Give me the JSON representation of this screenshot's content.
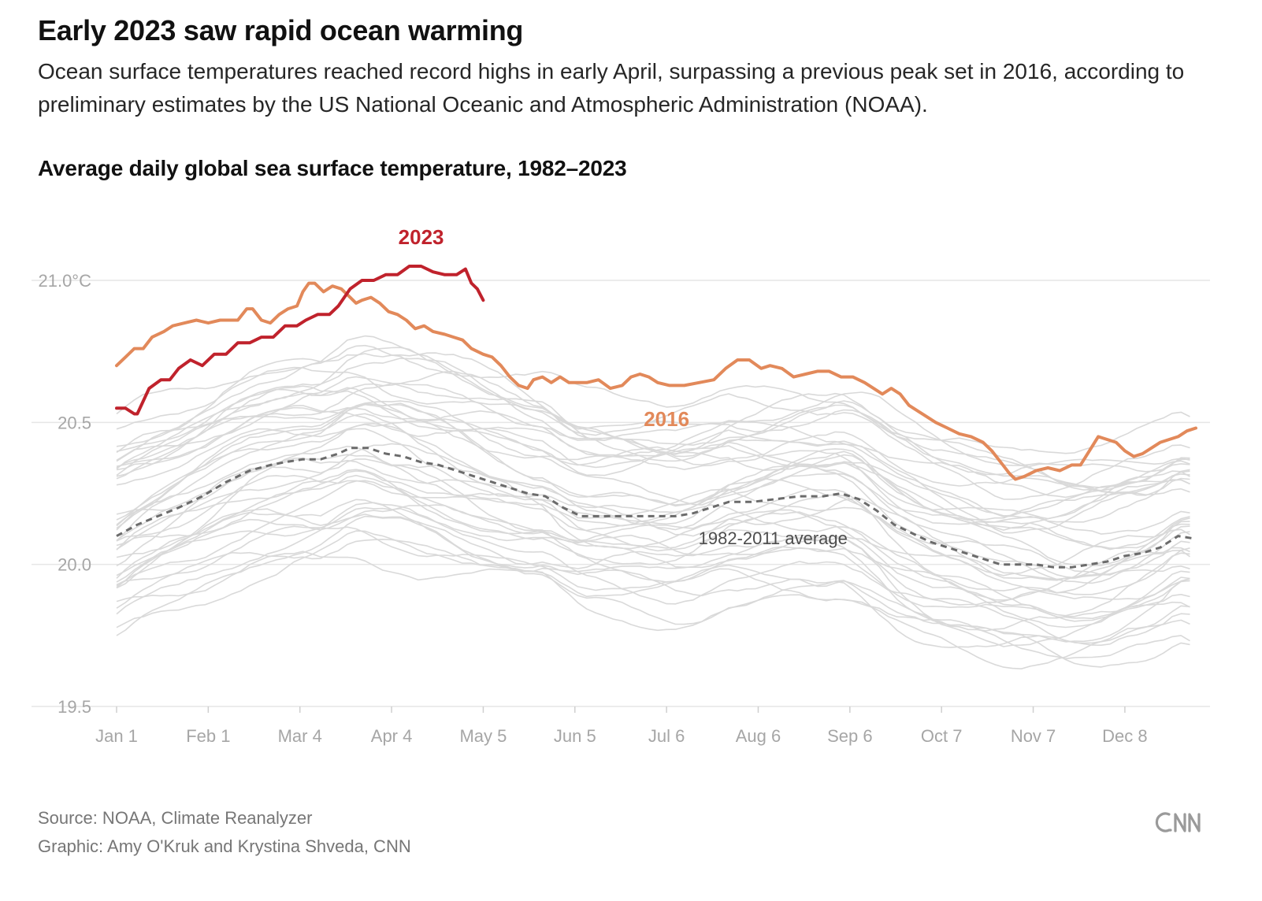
{
  "header": {
    "headline": "Early 2023 saw rapid ocean warming",
    "dek": "Ocean surface temperatures reached record highs in early April, surpassing a previous peak set in 2016, according to preliminary estimates by the US National Oceanic and Atmospheric Administration (NOAA)."
  },
  "footer": {
    "source": "Source: NOAA, Climate Reanalyzer",
    "credit": "Graphic: Amy O'Kruk and Krystina Shveda, CNN",
    "logo_text": "CNN",
    "logo_icon": "cnn-logo-icon"
  },
  "chart_data": {
    "type": "line",
    "title": "Average daily global sea surface temperature, 1982–2023",
    "ylim": [
      19.5,
      21.2
    ],
    "xlim": [
      1,
      366
    ],
    "grid": true,
    "y_ticks": [
      {
        "value": 19.5,
        "label": "19.5"
      },
      {
        "value": 20.0,
        "label": "20.0"
      },
      {
        "value": 20.5,
        "label": "20.5"
      },
      {
        "value": 21.0,
        "label": "21.0°C"
      }
    ],
    "x_ticks": [
      {
        "day": 1,
        "label": "Jan 1"
      },
      {
        "day": 32,
        "label": "Feb 1"
      },
      {
        "day": 63,
        "label": "Mar 4"
      },
      {
        "day": 94,
        "label": "Apr 4"
      },
      {
        "day": 125,
        "label": "May 5"
      },
      {
        "day": 156,
        "label": "Jun 5"
      },
      {
        "day": 187,
        "label": "Jul 6"
      },
      {
        "day": 218,
        "label": "Aug 6"
      },
      {
        "day": 249,
        "label": "Sep 6"
      },
      {
        "day": 280,
        "label": "Oct 7"
      },
      {
        "day": 311,
        "label": "Nov 7"
      },
      {
        "day": 342,
        "label": "Dec 8"
      }
    ],
    "colors": {
      "s2023": "#c0222c",
      "s2016": "#e2895a",
      "average": "#6b6b6b",
      "background_years": "#d9d9d9",
      "gridline": "#e6e6e6",
      "tick_text": "#a6a6a6"
    },
    "series": [
      {
        "name": "2023",
        "role": "highlight",
        "points": [
          [
            1,
            20.55
          ],
          [
            4,
            20.55
          ],
          [
            7,
            20.53
          ],
          [
            8,
            20.53
          ],
          [
            12,
            20.62
          ],
          [
            16,
            20.65
          ],
          [
            19,
            20.65
          ],
          [
            22,
            20.69
          ],
          [
            26,
            20.72
          ],
          [
            30,
            20.7
          ],
          [
            34,
            20.74
          ],
          [
            38,
            20.74
          ],
          [
            42,
            20.78
          ],
          [
            46,
            20.78
          ],
          [
            50,
            20.8
          ],
          [
            54,
            20.8
          ],
          [
            58,
            20.84
          ],
          [
            62,
            20.84
          ],
          [
            65,
            20.86
          ],
          [
            69,
            20.88
          ],
          [
            73,
            20.88
          ],
          [
            76,
            20.91
          ],
          [
            80,
            20.97
          ],
          [
            84,
            21.0
          ],
          [
            88,
            21.0
          ],
          [
            92,
            21.02
          ],
          [
            96,
            21.02
          ],
          [
            100,
            21.05
          ],
          [
            104,
            21.05
          ],
          [
            108,
            21.03
          ],
          [
            112,
            21.02
          ],
          [
            116,
            21.02
          ],
          [
            119,
            21.04
          ],
          [
            121,
            20.99
          ],
          [
            123,
            20.97
          ],
          [
            125,
            20.93
          ]
        ]
      },
      {
        "name": "2016",
        "role": "highlight",
        "points": [
          [
            1,
            20.7
          ],
          [
            4,
            20.73
          ],
          [
            7,
            20.76
          ],
          [
            10,
            20.76
          ],
          [
            13,
            20.8
          ],
          [
            17,
            20.82
          ],
          [
            20,
            20.84
          ],
          [
            24,
            20.85
          ],
          [
            28,
            20.86
          ],
          [
            32,
            20.85
          ],
          [
            36,
            20.86
          ],
          [
            40,
            20.86
          ],
          [
            42,
            20.86
          ],
          [
            45,
            20.9
          ],
          [
            47,
            20.9
          ],
          [
            50,
            20.86
          ],
          [
            53,
            20.85
          ],
          [
            56,
            20.88
          ],
          [
            59,
            20.9
          ],
          [
            62,
            20.91
          ],
          [
            64,
            20.96
          ],
          [
            66,
            20.99
          ],
          [
            68,
            20.99
          ],
          [
            71,
            20.96
          ],
          [
            74,
            20.98
          ],
          [
            77,
            20.97
          ],
          [
            80,
            20.94
          ],
          [
            82,
            20.92
          ],
          [
            84,
            20.93
          ],
          [
            87,
            20.94
          ],
          [
            90,
            20.92
          ],
          [
            93,
            20.89
          ],
          [
            96,
            20.88
          ],
          [
            99,
            20.86
          ],
          [
            102,
            20.83
          ],
          [
            105,
            20.84
          ],
          [
            108,
            20.82
          ],
          [
            112,
            20.81
          ],
          [
            115,
            20.8
          ],
          [
            118,
            20.79
          ],
          [
            121,
            20.76
          ],
          [
            125,
            20.74
          ],
          [
            128,
            20.73
          ],
          [
            131,
            20.7
          ],
          [
            134,
            20.66
          ],
          [
            137,
            20.63
          ],
          [
            140,
            20.62
          ],
          [
            142,
            20.65
          ],
          [
            145,
            20.66
          ],
          [
            148,
            20.64
          ],
          [
            151,
            20.66
          ],
          [
            154,
            20.64
          ],
          [
            157,
            20.64
          ],
          [
            160,
            20.64
          ],
          [
            164,
            20.65
          ],
          [
            168,
            20.62
          ],
          [
            172,
            20.63
          ],
          [
            175,
            20.66
          ],
          [
            178,
            20.67
          ],
          [
            181,
            20.66
          ],
          [
            184,
            20.64
          ],
          [
            188,
            20.63
          ],
          [
            193,
            20.63
          ],
          [
            198,
            20.64
          ],
          [
            203,
            20.65
          ],
          [
            207,
            20.69
          ],
          [
            211,
            20.72
          ],
          [
            215,
            20.72
          ],
          [
            219,
            20.69
          ],
          [
            222,
            20.7
          ],
          [
            226,
            20.69
          ],
          [
            230,
            20.66
          ],
          [
            234,
            20.67
          ],
          [
            238,
            20.68
          ],
          [
            242,
            20.68
          ],
          [
            246,
            20.66
          ],
          [
            250,
            20.66
          ],
          [
            254,
            20.64
          ],
          [
            257,
            20.62
          ],
          [
            260,
            20.6
          ],
          [
            263,
            20.62
          ],
          [
            266,
            20.6
          ],
          [
            269,
            20.56
          ],
          [
            272,
            20.54
          ],
          [
            275,
            20.52
          ],
          [
            278,
            20.5
          ],
          [
            282,
            20.48
          ],
          [
            286,
            20.46
          ],
          [
            290,
            20.45
          ],
          [
            294,
            20.43
          ],
          [
            297,
            20.4
          ],
          [
            300,
            20.36
          ],
          [
            303,
            20.32
          ],
          [
            305,
            20.3
          ],
          [
            308,
            20.31
          ],
          [
            312,
            20.33
          ],
          [
            316,
            20.34
          ],
          [
            320,
            20.33
          ],
          [
            324,
            20.35
          ],
          [
            327,
            20.35
          ],
          [
            330,
            20.4
          ],
          [
            333,
            20.45
          ],
          [
            336,
            20.44
          ],
          [
            339,
            20.43
          ],
          [
            342,
            20.4
          ],
          [
            345,
            20.38
          ],
          [
            348,
            20.39
          ],
          [
            351,
            20.41
          ],
          [
            354,
            20.43
          ],
          [
            357,
            20.44
          ],
          [
            360,
            20.45
          ],
          [
            363,
            20.47
          ],
          [
            366,
            20.48
          ]
        ]
      },
      {
        "name": "1982-2011 average",
        "role": "average",
        "points": [
          [
            1,
            20.1
          ],
          [
            8,
            20.14
          ],
          [
            15,
            20.17
          ],
          [
            22,
            20.2
          ],
          [
            30,
            20.24
          ],
          [
            38,
            20.29
          ],
          [
            46,
            20.33
          ],
          [
            53,
            20.35
          ],
          [
            58,
            20.36
          ],
          [
            64,
            20.37
          ],
          [
            70,
            20.37
          ],
          [
            76,
            20.39
          ],
          [
            80,
            20.41
          ],
          [
            86,
            20.41
          ],
          [
            92,
            20.39
          ],
          [
            98,
            20.38
          ],
          [
            104,
            20.36
          ],
          [
            110,
            20.35
          ],
          [
            116,
            20.33
          ],
          [
            122,
            20.31
          ],
          [
            128,
            20.29
          ],
          [
            134,
            20.27
          ],
          [
            140,
            20.25
          ],
          [
            146,
            20.24
          ],
          [
            152,
            20.2
          ],
          [
            158,
            20.17
          ],
          [
            166,
            20.17
          ],
          [
            174,
            20.17
          ],
          [
            182,
            20.17
          ],
          [
            190,
            20.17
          ],
          [
            196,
            20.18
          ],
          [
            202,
            20.2
          ],
          [
            208,
            20.22
          ],
          [
            216,
            20.22
          ],
          [
            224,
            20.23
          ],
          [
            232,
            20.24
          ],
          [
            240,
            20.24
          ],
          [
            246,
            20.25
          ],
          [
            252,
            20.23
          ],
          [
            258,
            20.19
          ],
          [
            264,
            20.14
          ],
          [
            270,
            20.11
          ],
          [
            276,
            20.08
          ],
          [
            282,
            20.06
          ],
          [
            288,
            20.04
          ],
          [
            294,
            20.02
          ],
          [
            300,
            20.0
          ],
          [
            306,
            20.0
          ],
          [
            312,
            20.0
          ],
          [
            318,
            19.99
          ],
          [
            324,
            19.99
          ],
          [
            330,
            20.0
          ],
          [
            336,
            20.01
          ],
          [
            342,
            20.03
          ],
          [
            348,
            20.04
          ],
          [
            354,
            20.06
          ],
          [
            360,
            20.1
          ],
          [
            366,
            20.09
          ]
        ]
      }
    ],
    "background_years": {
      "range": "1982–2022",
      "envelope_note": "thin light-grey lines, one per year",
      "typical_min": 19.65,
      "typical_max": 20.95
    },
    "annotations": [
      {
        "text": "2023",
        "series": "2023"
      },
      {
        "text": "2016",
        "series": "2016"
      },
      {
        "text": "1982-2011 average",
        "series": "1982-2011 average"
      }
    ]
  }
}
